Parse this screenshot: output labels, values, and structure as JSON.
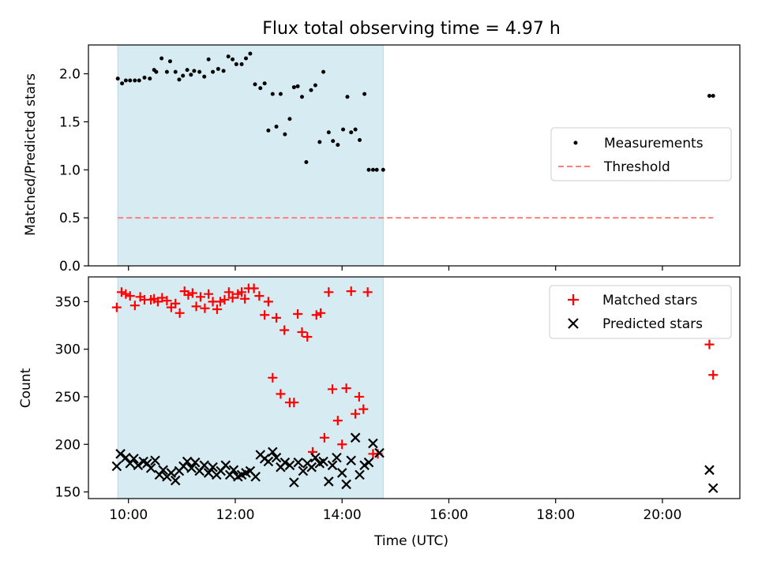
{
  "chart_data": [
    {
      "type": "scatter",
      "title": "Flux total observing time = 4.97 h",
      "xlabel": "",
      "ylabel": "Matched/Predicted stars",
      "ylim": [
        0,
        2.3
      ],
      "yticks": [
        0.0,
        0.5,
        1.0,
        1.5,
        2.0
      ],
      "ytick_labels": [
        "0.0",
        "0.5",
        "1.0",
        "1.5",
        "2.0"
      ],
      "xlim_hours": [
        9.25,
        21.45
      ],
      "xticks_hours": [
        10,
        12,
        14,
        16,
        18,
        20
      ],
      "shaded_span_hours": [
        9.8,
        14.77
      ],
      "shaded_color": "#add8e6",
      "legend_position": "center-right",
      "series": [
        {
          "name": "Measurements",
          "color": "#000000",
          "marker": "dot",
          "x_hours": [
            9.8,
            9.88,
            9.95,
            10.03,
            10.12,
            10.2,
            10.3,
            10.4,
            10.48,
            10.52,
            10.62,
            10.72,
            10.78,
            10.88,
            10.95,
            11.02,
            11.1,
            11.17,
            11.23,
            11.33,
            11.42,
            11.5,
            11.58,
            11.68,
            11.78,
            11.87,
            11.95,
            12.02,
            12.12,
            12.2,
            12.28,
            12.37,
            12.47,
            12.55,
            12.62,
            12.7,
            12.77,
            12.85,
            12.93,
            13.02,
            13.1,
            13.17,
            13.25,
            13.33,
            13.42,
            13.5,
            13.58,
            13.65,
            13.75,
            13.83,
            13.92,
            14.02,
            14.1,
            14.17,
            14.25,
            14.33,
            14.42,
            14.5,
            14.58,
            14.65,
            14.77,
            20.88,
            20.95
          ],
          "y": [
            1.95,
            1.9,
            1.93,
            1.93,
            1.93,
            1.93,
            1.96,
            1.95,
            2.04,
            2.02,
            2.16,
            2.02,
            2.13,
            2.02,
            1.94,
            1.98,
            2.04,
            1.99,
            2.03,
            2.02,
            1.97,
            2.15,
            2.02,
            2.05,
            2.03,
            2.18,
            2.15,
            2.1,
            2.1,
            2.16,
            2.21,
            1.89,
            1.85,
            1.9,
            1.41,
            1.79,
            1.45,
            1.79,
            1.37,
            1.53,
            1.86,
            1.87,
            1.76,
            1.08,
            1.83,
            1.88,
            1.29,
            2.02,
            1.39,
            1.3,
            1.26,
            1.42,
            1.76,
            1.39,
            1.42,
            1.31,
            1.79,
            1.0,
            1.0,
            1.0,
            1.0,
            1.77,
            1.77
          ]
        },
        {
          "name": "Threshold",
          "color": "#ff7f7f",
          "style": "dashed",
          "x_hours": [
            9.8,
            20.95
          ],
          "y": [
            0.5,
            0.5
          ]
        }
      ]
    },
    {
      "type": "scatter",
      "title": "",
      "xlabel": "Time (UTC)",
      "ylabel": "Count",
      "ylim": [
        143,
        376
      ],
      "yticks": [
        150,
        200,
        250,
        300,
        350
      ],
      "ytick_labels": [
        "150",
        "200",
        "250",
        "300",
        "350"
      ],
      "xlim_hours": [
        9.25,
        21.45
      ],
      "xticks_hours": [
        10,
        12,
        14,
        16,
        18,
        20
      ],
      "xtick_labels": [
        "10:00",
        "12:00",
        "14:00",
        "16:00",
        "18:00",
        "20:00"
      ],
      "shaded_span_hours": [
        9.8,
        14.77
      ],
      "shaded_color": "#add8e6",
      "legend_position": "top-right",
      "series": [
        {
          "name": "Matched stars",
          "color": "#ff0000",
          "marker": "plus",
          "x_hours": [
            9.78,
            9.87,
            9.95,
            10.03,
            10.12,
            10.22,
            10.3,
            10.42,
            10.48,
            10.55,
            10.63,
            10.72,
            10.8,
            10.88,
            10.96,
            11.05,
            11.12,
            11.2,
            11.27,
            11.35,
            11.43,
            11.5,
            11.58,
            11.66,
            11.72,
            11.8,
            11.88,
            11.95,
            12.05,
            12.12,
            12.18,
            12.25,
            12.35,
            12.45,
            12.55,
            12.62,
            12.7,
            12.77,
            12.85,
            12.92,
            13.02,
            13.1,
            13.17,
            13.25,
            13.35,
            13.45,
            13.52,
            13.6,
            13.67,
            13.75,
            13.82,
            13.92,
            14.0,
            14.08,
            14.17,
            14.25,
            14.32,
            14.4,
            14.48,
            14.58,
            14.67,
            20.88,
            20.95
          ],
          "y": [
            344,
            360,
            358,
            356,
            346,
            355,
            352,
            352,
            353,
            350,
            354,
            351,
            344,
            348,
            338,
            361,
            357,
            359,
            345,
            355,
            343,
            358,
            350,
            342,
            350,
            352,
            360,
            354,
            358,
            360,
            353,
            364,
            364,
            356,
            336,
            350,
            270,
            333,
            253,
            320,
            244,
            244,
            337,
            318,
            313,
            192,
            336,
            338,
            207,
            360,
            258,
            225,
            200,
            259,
            361,
            232,
            250,
            237,
            360,
            190,
            190,
            305,
            273
          ]
        },
        {
          "name": "Predicted stars",
          "color": "#000000",
          "marker": "x",
          "x_hours": [
            9.78,
            9.85,
            9.95,
            10.03,
            10.1,
            10.18,
            10.28,
            10.35,
            10.42,
            10.5,
            10.58,
            10.65,
            10.72,
            10.8,
            10.88,
            10.95,
            11.03,
            11.1,
            11.18,
            11.25,
            11.33,
            11.42,
            11.5,
            11.58,
            11.65,
            11.73,
            11.82,
            11.9,
            11.97,
            12.05,
            12.12,
            12.2,
            12.28,
            12.38,
            12.47,
            12.55,
            12.62,
            12.7,
            12.77,
            12.85,
            12.93,
            13.02,
            13.1,
            13.18,
            13.27,
            13.35,
            13.43,
            13.5,
            13.58,
            13.65,
            13.75,
            13.82,
            13.9,
            14.0,
            14.08,
            14.17,
            14.25,
            14.33,
            14.42,
            14.5,
            14.58,
            14.7,
            20.88,
            20.95
          ],
          "y": [
            177,
            190,
            186,
            180,
            185,
            178,
            182,
            180,
            175,
            183,
            168,
            173,
            166,
            170,
            162,
            172,
            177,
            182,
            175,
            181,
            172,
            178,
            170,
            176,
            168,
            172,
            178,
            168,
            173,
            166,
            168,
            170,
            172,
            166,
            189,
            185,
            182,
            192,
            186,
            176,
            181,
            178,
            160,
            181,
            172,
            180,
            176,
            186,
            180,
            182,
            161,
            178,
            186,
            170,
            158,
            183,
            207,
            168,
            178,
            181,
            201,
            191,
            173,
            154
          ]
        }
      ]
    }
  ]
}
